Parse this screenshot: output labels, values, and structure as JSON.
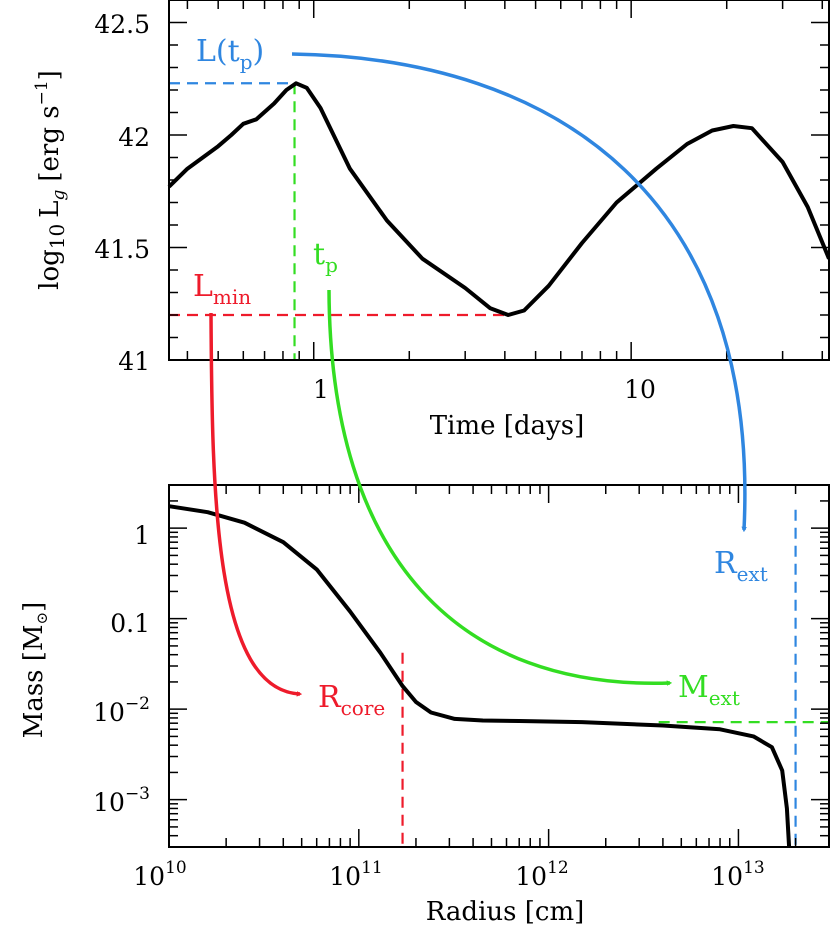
{
  "colors": {
    "blue": "#2f86e0",
    "green": "#33dd22",
    "red": "#ee1b2b",
    "black": "#000000"
  },
  "chart_data": [
    {
      "type": "line",
      "xscale": "log",
      "xlim": [
        0.35,
        42
      ],
      "ylim": [
        41.0,
        42.6
      ],
      "xlabel": "Time [days]",
      "ylabel": {
        "main": "log",
        "sub10": "10",
        "L": "L",
        "subg": "g",
        "unit": "[erg s",
        "exp": "−1",
        "close": "]"
      },
      "x_ticks": [
        {
          "v": 1,
          "label": "1"
        },
        {
          "v": 10,
          "label": "10"
        }
      ],
      "y_ticks": [
        {
          "v": 41.0,
          "label": "41"
        },
        {
          "v": 41.5,
          "label": "41.5"
        },
        {
          "v": 42.0,
          "label": "42"
        },
        {
          "v": 42.5,
          "label": "42.5"
        }
      ],
      "series": [
        {
          "name": "luminosity",
          "x": [
            0.35,
            0.4,
            0.5,
            0.55,
            0.6,
            0.66,
            0.75,
            0.82,
            0.88,
            0.95,
            1.05,
            1.3,
            1.7,
            2.2,
            3.0,
            3.6,
            4.1,
            4.6,
            5.5,
            7.0,
            9.0,
            12,
            15,
            18,
            21,
            24,
            30,
            36,
            42
          ],
          "y": [
            41.77,
            41.85,
            41.95,
            42.0,
            42.05,
            42.07,
            42.14,
            42.2,
            42.23,
            42.21,
            42.12,
            41.85,
            41.62,
            41.45,
            41.32,
            41.23,
            41.2,
            41.22,
            41.33,
            41.52,
            41.7,
            41.85,
            41.96,
            42.02,
            42.04,
            42.03,
            41.88,
            41.68,
            41.45
          ]
        }
      ],
      "guides": {
        "peak_time": 0.87,
        "peak_lum": 42.23,
        "min_time": 4.1,
        "min_lum": 41.2
      },
      "annotations": {
        "L_tp": {
          "pre": "L(t",
          "sub": "p",
          "post": ")"
        },
        "tp": {
          "main": "t",
          "sub": "p"
        },
        "Lmin": {
          "main": "L",
          "sub": "min"
        }
      }
    },
    {
      "type": "line",
      "xscale": "log",
      "yscale": "log",
      "xlim": [
        10000000000.0,
        30000000000000.0
      ],
      "ylim": [
        0.0003,
        3.0
      ],
      "xlabel": "Radius [cm]",
      "ylabel": {
        "pre": "Mass [M",
        "sym": "⊙",
        "post": "]"
      },
      "x_ticks": [
        {
          "v": 10000000000.0,
          "base": "10",
          "exp": "10"
        },
        {
          "v": 100000000000.0,
          "base": "10",
          "exp": "11"
        },
        {
          "v": 1000000000000.0,
          "base": "10",
          "exp": "12"
        },
        {
          "v": 10000000000000.0,
          "base": "10",
          "exp": "13"
        }
      ],
      "y_ticks": [
        {
          "v": 1,
          "label": "1"
        },
        {
          "v": 0.1,
          "label": "0.1"
        },
        {
          "v": 0.01,
          "base": "10",
          "exp": "−2"
        },
        {
          "v": 0.001,
          "base": "10",
          "exp": "−3"
        }
      ],
      "series": [
        {
          "name": "mass",
          "x": [
            10000000000.0,
            16000000000.0,
            25000000000.0,
            40000000000.0,
            60000000000.0,
            90000000000.0,
            130000000000.0,
            170000000000.0,
            200000000000.0,
            240000000000.0,
            320000000000.0,
            450000000000.0,
            700000000000.0,
            1500000000000.0,
            4000000000000.0,
            8000000000000.0,
            12000000000000.0,
            15000000000000.0,
            17000000000000.0,
            18000000000000.0,
            18500000000000.0
          ],
          "y": [
            1.75,
            1.5,
            1.15,
            0.7,
            0.35,
            0.12,
            0.042,
            0.018,
            0.012,
            0.0092,
            0.0078,
            0.0075,
            0.0074,
            0.0072,
            0.0066,
            0.006,
            0.005,
            0.0038,
            0.0021,
            0.0008,
            0.0003
          ]
        }
      ],
      "guides": {
        "R_core": 170000000000.0,
        "R_core_top": 0.042,
        "R_ext": 20000000000000.0,
        "R_ext_top": 1.6,
        "M_ext": 0.0072,
        "M_ext_start": 3800000000000.0
      },
      "annotations": {
        "R_core": {
          "main": "R",
          "sub": "core"
        },
        "M_ext": {
          "main": "M",
          "sub": "ext"
        },
        "R_ext": {
          "main": "R",
          "sub": "ext"
        }
      }
    }
  ]
}
